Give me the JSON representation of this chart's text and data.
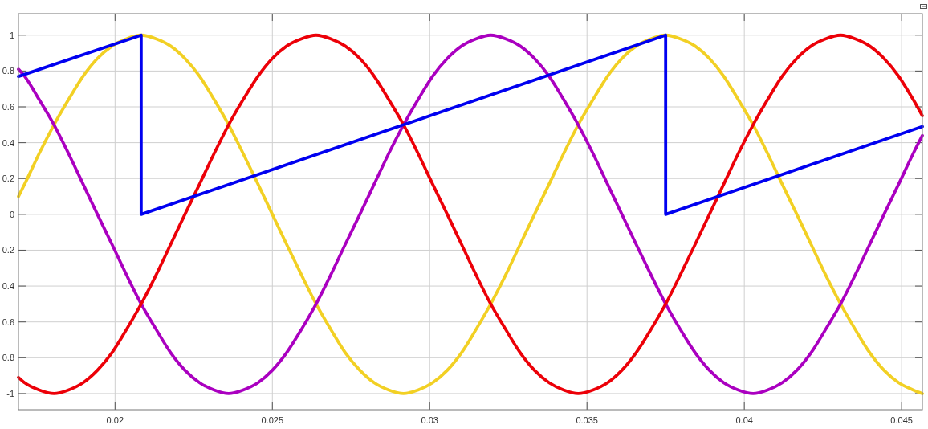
{
  "chart_data": {
    "type": "line",
    "x": [
      0.01693,
      0.01713,
      0.01759,
      0.01806,
      0.01852,
      0.01898,
      0.01944,
      0.01991,
      0.02037,
      0.02083,
      0.0213,
      0.02176,
      0.02222,
      0.02269,
      0.02315,
      0.02361,
      0.02407,
      0.02454,
      0.025,
      0.02546,
      0.02593,
      0.02639,
      0.02685,
      0.02731,
      0.02778,
      0.02824,
      0.0287,
      0.02917,
      0.02963,
      0.03009,
      0.03056,
      0.03102,
      0.03148,
      0.03194,
      0.03241,
      0.03287,
      0.03333,
      0.0338,
      0.03426,
      0.03472,
      0.03519,
      0.03565,
      0.03611,
      0.03657,
      0.03704,
      0.0375,
      0.03796,
      0.03843,
      0.03889,
      0.03935,
      0.03981,
      0.04028,
      0.04074,
      0.0412,
      0.04167,
      0.04213,
      0.04259,
      0.04306,
      0.04352,
      0.04398,
      0.04444,
      0.04491,
      0.04537,
      0.04566
    ],
    "series": [
      {
        "color": "#f2d024",
        "values": [
          0.1,
          0.17,
          0.34,
          0.5,
          0.64,
          0.77,
          0.87,
          0.94,
          0.98,
          1,
          0.98,
          0.94,
          0.87,
          0.77,
          0.64,
          0.5,
          0.34,
          0.17,
          0,
          -0.17,
          -0.34,
          -0.5,
          -0.64,
          -0.77,
          -0.87,
          -0.94,
          -0.98,
          -1,
          -0.98,
          -0.94,
          -0.87,
          -0.77,
          -0.64,
          -0.5,
          -0.34,
          -0.17,
          0,
          0.17,
          0.34,
          0.5,
          0.64,
          0.77,
          0.87,
          0.94,
          0.98,
          1,
          0.98,
          0.94,
          0.87,
          0.77,
          0.64,
          0.5,
          0.34,
          0.17,
          0,
          -0.17,
          -0.34,
          -0.5,
          -0.64,
          -0.77,
          -0.87,
          -0.94,
          -0.98,
          -1
        ]
      },
      {
        "color": "#aa00c0",
        "values": [
          0.81,
          0.77,
          0.64,
          0.5,
          0.34,
          0.17,
          0,
          -0.17,
          -0.34,
          -0.5,
          -0.64,
          -0.77,
          -0.87,
          -0.94,
          -0.98,
          -1,
          -0.98,
          -0.94,
          -0.87,
          -0.77,
          -0.64,
          -0.5,
          -0.34,
          -0.17,
          0,
          0.17,
          0.34,
          0.5,
          0.64,
          0.77,
          0.87,
          0.94,
          0.98,
          1,
          0.98,
          0.94,
          0.87,
          0.77,
          0.64,
          0.5,
          0.34,
          0.17,
          0,
          -0.17,
          -0.34,
          -0.5,
          -0.64,
          -0.77,
          -0.87,
          -0.94,
          -0.98,
          -1,
          -0.98,
          -0.94,
          -0.87,
          -0.77,
          -0.64,
          -0.5,
          -0.34,
          -0.17,
          0,
          0.17,
          0.34,
          0.44
        ]
      },
      {
        "color": "#ec0008",
        "values": [
          -0.91,
          -0.94,
          -0.98,
          -1,
          -0.98,
          -0.94,
          -0.87,
          -0.77,
          -0.64,
          -0.5,
          -0.34,
          -0.17,
          0,
          0.17,
          0.34,
          0.5,
          0.64,
          0.77,
          0.87,
          0.94,
          0.98,
          1,
          0.98,
          0.94,
          0.87,
          0.77,
          0.64,
          0.5,
          0.34,
          0.17,
          0,
          -0.17,
          -0.34,
          -0.5,
          -0.64,
          -0.77,
          -0.87,
          -0.94,
          -0.98,
          -1,
          -0.98,
          -0.94,
          -0.87,
          -0.77,
          -0.64,
          -0.5,
          -0.34,
          -0.17,
          0,
          0.17,
          0.34,
          0.5,
          0.64,
          0.77,
          0.87,
          0.94,
          0.98,
          1,
          0.98,
          0.94,
          0.87,
          0.77,
          0.64,
          0.55
        ]
      },
      {
        "color": "#0000f0",
        "x": [
          0.01693,
          0.02083,
          0.02083,
          0.0375,
          0.0375,
          0.04566
        ],
        "values": [
          0.77,
          1,
          0,
          1,
          0,
          0.49
        ]
      }
    ],
    "xlim": [
      0.01693,
      0.04566
    ],
    "xticks": [
      0.02,
      0.025,
      0.03,
      0.035,
      0.04,
      0.045
    ],
    "ylim": [
      -1.09,
      1.12
    ],
    "yticks": [
      -1,
      {
        "value": -0.8,
        "label": "0.8"
      },
      {
        "value": -0.6,
        "label": "0.6"
      },
      {
        "value": -0.4,
        "label": "0.4"
      },
      {
        "value": -0.2,
        "label": "0.2"
      },
      0,
      0.2,
      0.4,
      0.6,
      0.8,
      1
    ],
    "grid": true
  }
}
